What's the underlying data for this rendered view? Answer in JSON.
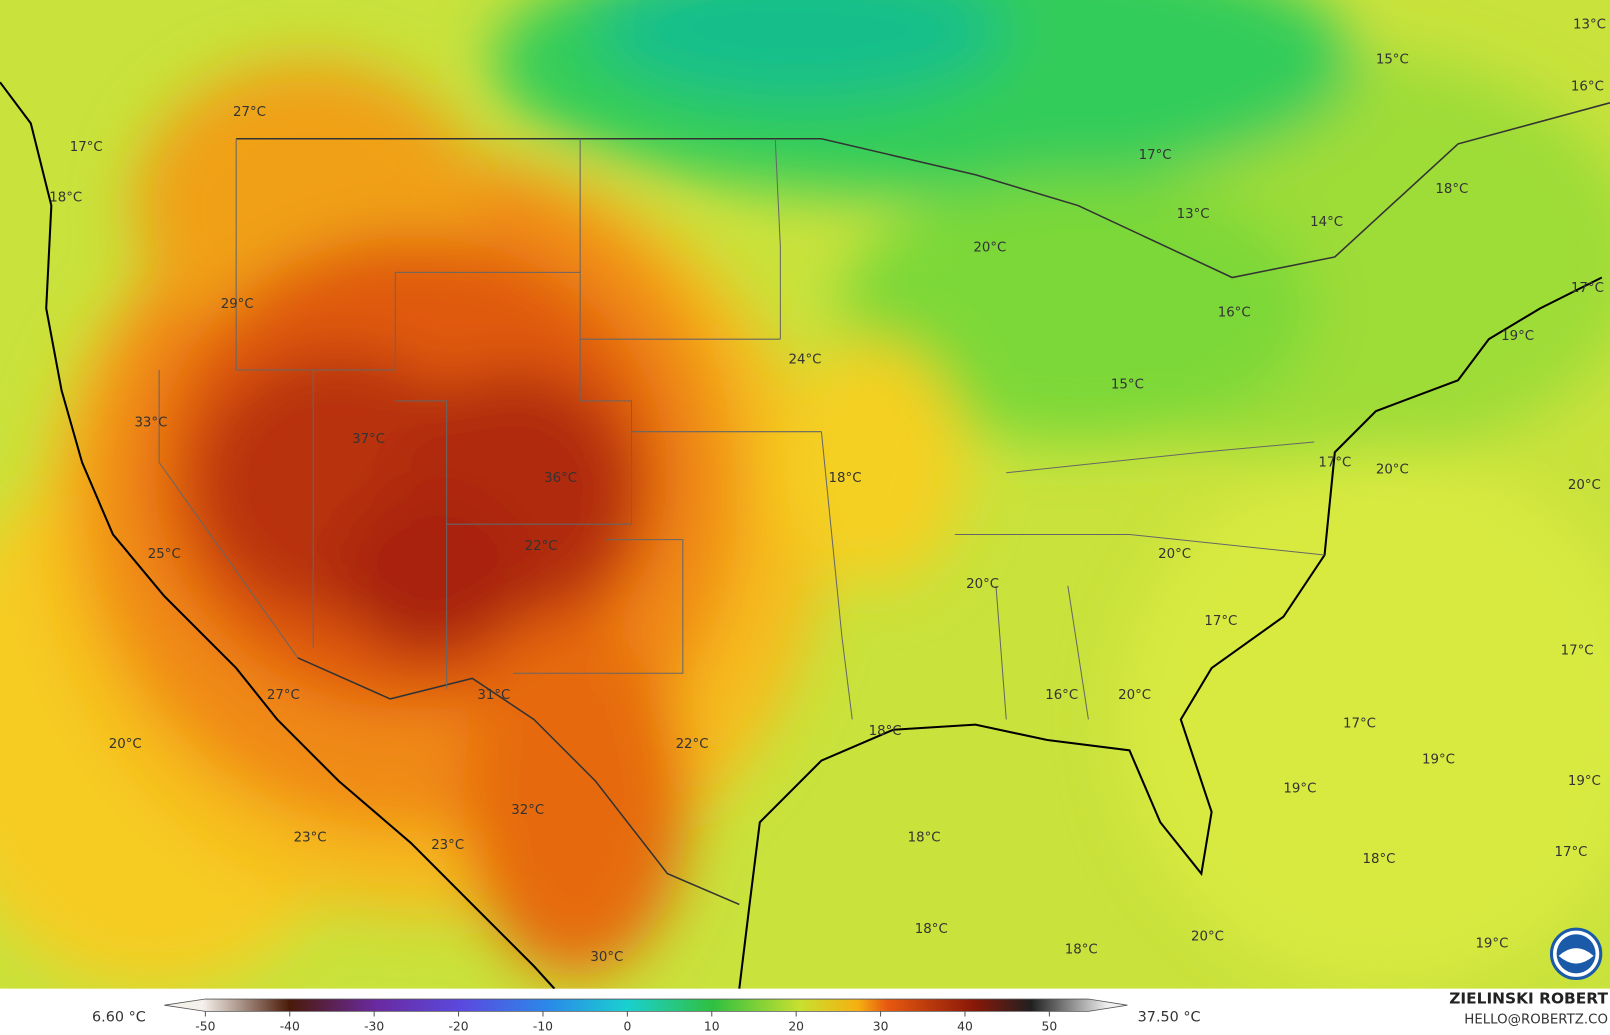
{
  "labels": [
    "27°C",
    "17°C",
    "18°C",
    "29°C",
    "33°C",
    "37°C",
    "36°C",
    "22°C",
    "25°C",
    "27°C",
    "20°C",
    "23°C",
    "23°C",
    "31°C",
    "32°C",
    "30°C",
    "22°C",
    "24°C",
    "18°C",
    "20°C",
    "18°C",
    "18°C",
    "18°C",
    "18°C",
    "20°C",
    "16°C",
    "20°C",
    "17°C",
    "20°C",
    "17°C",
    "20°C",
    "20°C",
    "17°C",
    "17°C",
    "19°C",
    "19°C",
    "19°C",
    "18°C",
    "17°C",
    "19°C",
    "15°C",
    "16°C",
    "14°C",
    "13°C",
    "17°C",
    "20°C",
    "15°C",
    "13°C",
    "16°C",
    "18°C",
    "17°C",
    "19°C"
  ],
  "colorbar": {
    "ticks": [
      -50,
      -40,
      -30,
      -20,
      -10,
      0,
      10,
      20,
      30,
      40,
      50
    ],
    "min_label": "6.60 °C",
    "max_label": "37.50 °C"
  },
  "credits": {
    "author": "ZIELINSKI ROBERT",
    "email": "HELLO@ROBERTZ.CO"
  }
}
